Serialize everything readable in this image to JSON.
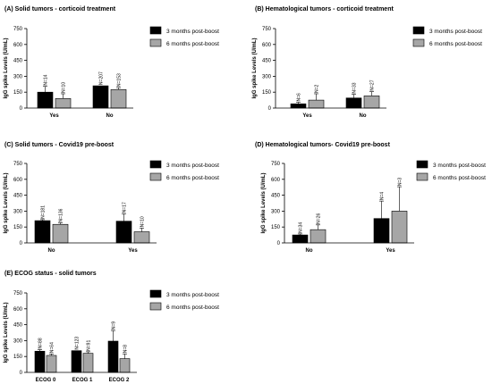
{
  "chart_data": [
    {
      "id": "A",
      "type": "bar",
      "title": "(A)      Solid tumors - corticoid treatment",
      "ylabel": "IgG spike Levels (U/mL)",
      "ylim": [
        0,
        750
      ],
      "yticks": [
        0,
        150,
        300,
        450,
        600,
        750
      ],
      "categories": [
        "Yes",
        "No"
      ],
      "series": [
        {
          "name": "3 months post-boost",
          "color": "#000000",
          "values": [
            150,
            210
          ],
          "errors": [
            55,
            0
          ],
          "n_labels": [
            "N=14",
            "N=207"
          ]
        },
        {
          "name": "6 months post-boost",
          "color": "#a6a6a6",
          "values": [
            90,
            175
          ],
          "errors": [
            45,
            18
          ],
          "n_labels": [
            "N=10",
            "N=153"
          ]
        }
      ]
    },
    {
      "id": "B",
      "type": "bar",
      "title": "(B)        Hematological tumors - corticoid treatment",
      "ylabel": "IgG spike Levels (U/mL)",
      "ylim": [
        0,
        750
      ],
      "yticks": [
        0,
        150,
        300,
        450,
        600,
        750
      ],
      "categories": [
        "Yes",
        "No"
      ],
      "series": [
        {
          "name": "3 months post-boost",
          "color": "#000000",
          "values": [
            40,
            95
          ],
          "errors": [
            15,
            35
          ],
          "n_labels": [
            "N=6",
            "N=33"
          ]
        },
        {
          "name": "6 months post-boost",
          "color": "#a6a6a6",
          "values": [
            75,
            115
          ],
          "errors": [
            60,
            40
          ],
          "n_labels": [
            "N=2",
            "N=27"
          ]
        }
      ]
    },
    {
      "id": "C",
      "type": "bar",
      "title": "(C)      Solid tumors - Covid19 pre-boost",
      "ylabel": "IgG spike Levels (U/mL)",
      "ylim": [
        0,
        750
      ],
      "yticks": [
        0,
        150,
        300,
        450,
        600,
        750
      ],
      "categories": [
        "No",
        "Yes"
      ],
      "series": [
        {
          "name": "3 months post-boost",
          "color": "#000000",
          "values": [
            210,
            205
          ],
          "errors": [
            10,
            70
          ],
          "n_labels": [
            "N=181",
            "N=17"
          ]
        },
        {
          "name": "6 months post-boost",
          "color": "#a6a6a6",
          "values": [
            175,
            105
          ],
          "errors": [
            15,
            35
          ],
          "n_labels": [
            "N=136",
            "N=10"
          ]
        }
      ]
    },
    {
      "id": "D",
      "type": "bar",
      "title": "(D)        Hematological tumors- Covid19 pre-boost",
      "ylabel": "IgG spike Levels (U/mL)",
      "ylim": [
        0,
        750
      ],
      "yticks": [
        0,
        150,
        300,
        450,
        600,
        750
      ],
      "categories": [
        "No",
        "Yes"
      ],
      "series": [
        {
          "name": "3 months post-boost",
          "color": "#000000",
          "values": [
            75,
            230
          ],
          "errors": [
            10,
            165
          ],
          "n_labels": [
            "N=34",
            "N=4"
          ]
        },
        {
          "name": "6 months post-boost",
          "color": "#a6a6a6",
          "values": [
            125,
            300
          ],
          "errors": [
            45,
            230
          ],
          "n_labels": [
            "N=26",
            "N=3"
          ]
        }
      ]
    },
    {
      "id": "E",
      "type": "bar",
      "title": "(E)      ECOG status - solid tumors",
      "ylabel": "IgG spike Levels (U/mL)",
      "ylim": [
        0,
        750
      ],
      "yticks": [
        0,
        150,
        300,
        450,
        600,
        750
      ],
      "categories": [
        "ECOG 0",
        "ECOG 1",
        "ECOG 2"
      ],
      "series": [
        {
          "name": "3 months post-boost",
          "color": "#000000",
          "values": [
            200,
            205,
            295
          ],
          "errors": [
            15,
            0,
            100
          ],
          "n_labels": [
            "N=88",
            "N=123",
            "N=9"
          ]
        },
        {
          "name": "6 months post-boost",
          "color": "#a6a6a6",
          "values": [
            160,
            180,
            130
          ],
          "errors": [
            15,
            15,
            45
          ],
          "n_labels": [
            "N=64",
            "N=91",
            "N=8"
          ]
        }
      ]
    }
  ]
}
